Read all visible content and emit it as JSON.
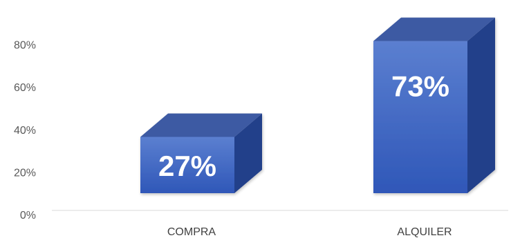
{
  "chart_data": {
    "type": "bar",
    "style": "3d-column",
    "categories": [
      "COMPRA",
      "ALQUILER"
    ],
    "values": [
      27,
      73
    ],
    "data_labels": [
      "27%",
      "73%"
    ],
    "yticks": [
      {
        "value": 0,
        "label": "0%"
      },
      {
        "value": 20,
        "label": "20%"
      },
      {
        "value": 40,
        "label": "40%"
      },
      {
        "value": 60,
        "label": "60%"
      },
      {
        "value": 80,
        "label": "80%"
      }
    ],
    "ylim": [
      0,
      80
    ],
    "grid": false,
    "legend": "none",
    "colors": {
      "front_top": "#5b7fd0",
      "front_bottom": "#2f57b8",
      "side": "#233f8a",
      "top": "#3c5aa3",
      "axis": "#d9d9d9"
    }
  }
}
